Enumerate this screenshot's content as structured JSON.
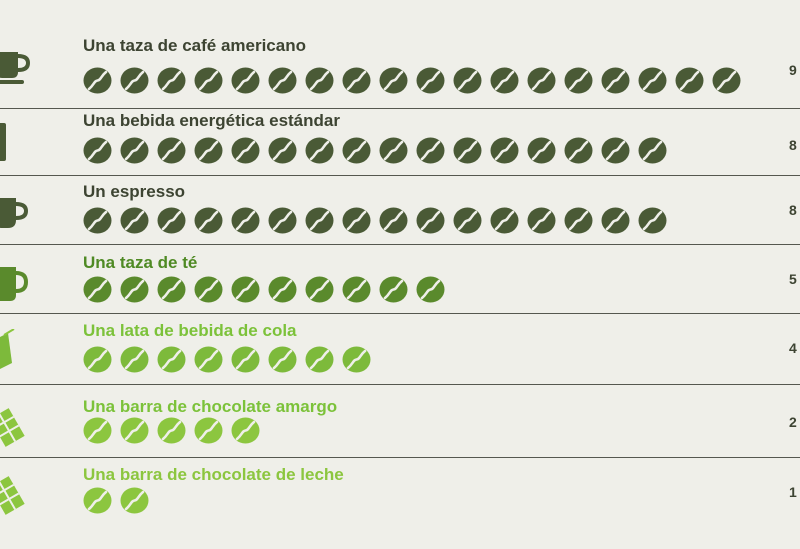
{
  "colors": {
    "background": "#efefe9",
    "dark_green": "#4a5a36",
    "mid_green": "#5a8a2c",
    "light_green": "#8cc63f",
    "bean_slit": "#efefe9"
  },
  "chart_data": {
    "type": "pictogram",
    "unit_note": "",
    "categories": [
      "Una taza de café americano",
      "Una bebida energética estándar",
      "Un espresso",
      "Una taza de té",
      "Una lata de bebida de cola",
      "Una barra de chocolate amargo",
      "Una barra de chocolate de leche"
    ],
    "values": [
      90,
      80,
      80,
      50,
      40,
      25,
      10
    ],
    "value_labels": [
      "9",
      "8",
      "8",
      "5",
      "4",
      "2",
      "1"
    ],
    "bean_counts": [
      18,
      16,
      16,
      10,
      8,
      5,
      2
    ],
    "icons": [
      "cup-and-saucer-icon",
      "energy-drink-can-icon",
      "espresso-cup-icon",
      "tea-mug-icon",
      "cola-can-icon",
      "dark-chocolate-bar-icon",
      "milk-chocolate-bar-icon"
    ],
    "label_colors": [
      "#3d4432",
      "#3d4432",
      "#3d4432",
      "#4f8a24",
      "#7cc23a",
      "#7cc23a",
      "#8cc63f"
    ],
    "bean_colors": [
      "#4a5a36",
      "#4a5a36",
      "#4a5a36",
      "#5a8a2c",
      "#7dba3b",
      "#8cc63f",
      "#8cc63f"
    ]
  }
}
